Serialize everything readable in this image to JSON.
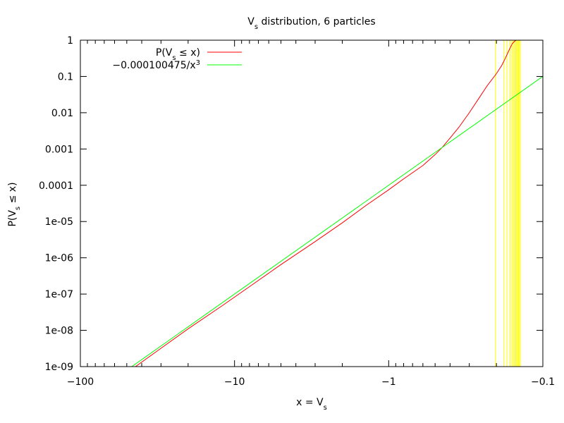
{
  "chart_data": {
    "type": "line",
    "title": "V_s distribution, 6 particles",
    "title_parts": {
      "pre": "V",
      "sub": "s",
      "post": " distribution, 6 particles"
    },
    "xlabel": "x = V_s",
    "xlabel_parts": {
      "pre": "x = V",
      "sub": "s",
      "post": ""
    },
    "ylabel": "P(V_s ≤ x)",
    "ylabel_parts": {
      "pre": "P(V",
      "sub": "s",
      "post": " ≤ x)"
    },
    "x_scale": "log of -x (negative values)",
    "y_scale": "log",
    "xlim": [
      -100,
      -0.1
    ],
    "ylim": [
      1e-09,
      1
    ],
    "x_ticks": [
      {
        "value": -100,
        "label": "−100"
      },
      {
        "value": -10,
        "label": "−10"
      },
      {
        "value": -1,
        "label": "−1"
      },
      {
        "value": -0.1,
        "label": "−0.1"
      }
    ],
    "y_ticks": [
      {
        "value": 1,
        "label": "1"
      },
      {
        "value": 0.1,
        "label": "0.1"
      },
      {
        "value": 0.01,
        "label": "0.01"
      },
      {
        "value": 0.001,
        "label": "0.001"
      },
      {
        "value": 0.0001,
        "label": "0.0001"
      },
      {
        "value": 1e-05,
        "label": "1e-05"
      },
      {
        "value": 1e-06,
        "label": "1e-06"
      },
      {
        "value": 1e-07,
        "label": "1e-07"
      },
      {
        "value": 1e-08,
        "label": "1e-08"
      },
      {
        "value": 1e-09,
        "label": "1e-09"
      }
    ],
    "grid": false,
    "legend_position": "top-left",
    "series": [
      {
        "name": "P(V_s ≤ x)",
        "name_parts": {
          "pre": "P(V",
          "sub": "s",
          "post": " ≤ x)"
        },
        "color": "#ff0000",
        "points": [
          [
            -43.9,
            1e-09
          ],
          [
            -30,
            3.2e-09
          ],
          [
            -20,
            1.1e-08
          ],
          [
            -12,
            4.8e-08
          ],
          [
            -8,
            1.6e-07
          ],
          [
            -5,
            6.5e-07
          ],
          [
            -3,
            2.8e-06
          ],
          [
            -2,
            9.2e-06
          ],
          [
            -1.4,
            2.8e-05
          ],
          [
            -1,
            7.5e-05
          ],
          [
            -0.8,
            0.00015
          ],
          [
            -0.6,
            0.00035
          ],
          [
            -0.5,
            0.0007
          ],
          [
            -0.45,
            0.0011
          ],
          [
            -0.4,
            0.002
          ],
          [
            -0.35,
            0.004
          ],
          [
            -0.3,
            0.01
          ],
          [
            -0.26,
            0.025
          ],
          [
            -0.23,
            0.055
          ],
          [
            -0.2,
            0.12
          ],
          [
            -0.185,
            0.2
          ],
          [
            -0.175,
            0.32
          ],
          [
            -0.165,
            0.55
          ],
          [
            -0.158,
            0.8
          ],
          [
            -0.152,
            0.95
          ],
          [
            -0.149,
            1
          ],
          [
            -0.13,
            1
          ]
        ]
      },
      {
        "name": "−0.000100475/x^3",
        "name_parts": {
          "pre": "−0.000100475/x",
          "sup": "3",
          "post": ""
        },
        "color": "#00ff00",
        "points": [
          [
            -46.4,
            1e-09
          ],
          [
            -0.1,
            0.100475
          ]
        ]
      }
    ],
    "vertical_lines": {
      "color": "#ffff00",
      "x": [
        -0.203,
        -0.179,
        -0.171,
        -0.163,
        -0.159,
        -0.156,
        -0.153,
        -0.15,
        -0.148,
        -0.146,
        -0.144,
        -0.142,
        -0.14
      ]
    }
  }
}
